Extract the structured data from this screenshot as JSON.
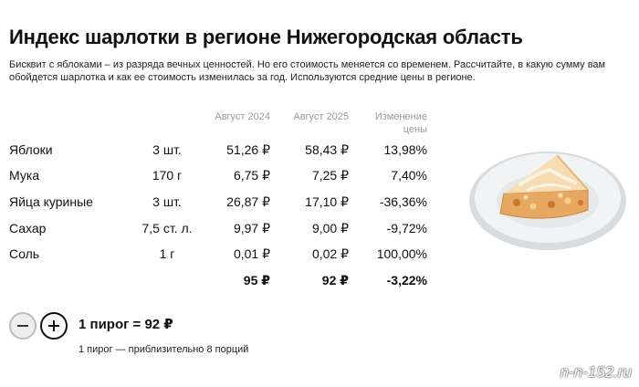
{
  "page": {
    "title": "Индекс шарлотки в регионе Нижегородская область",
    "description_line1": "Бисквит с яблоками – из разряда вечных ценностей. Но его стоимость меняется со временем. Рассчитайте, в какую сумму вам",
    "description_line2": "обойдется шарлотка и как ее стоимость изменилась за год. Используются средние цены в регионе."
  },
  "table": {
    "headers": {
      "aug2024": "Август 2024",
      "aug2025": "Август 2025",
      "change_line1": "Изменение",
      "change_line2": "цены"
    },
    "rows": [
      {
        "name": "Яблоки",
        "qty": "3 шт.",
        "price_2024": "51,26 ₽",
        "price_2025": "58,43 ₽",
        "change": "13,98%"
      },
      {
        "name": "Мука",
        "qty": "170 г",
        "price_2024": "6,75 ₽",
        "price_2025": "7,25 ₽",
        "change": "7,40%"
      },
      {
        "name": "Яйца куриные",
        "qty": "3 шт.",
        "price_2024": "26,87 ₽",
        "price_2025": "17,10 ₽",
        "change": "-36,36%"
      },
      {
        "name": "Сахар",
        "qty": "7,5 ст. л.",
        "price_2024": "9,97 ₽",
        "price_2025": "9,00 ₽",
        "change": "-9,72%"
      },
      {
        "name": "Соль",
        "qty": "1 г",
        "price_2024": "0,01 ₽",
        "price_2025": "0,02 ₽",
        "change": "100,00%"
      }
    ],
    "totals": {
      "price_2024": "95 ₽",
      "price_2025": "92 ₽",
      "change": "-3,22%"
    }
  },
  "calculator": {
    "count_label": "1 пирог = 92 ₽",
    "portion_note": "1 пирог — приблизительно 8 порций"
  },
  "icons": {
    "minus": "minus-icon",
    "plus": "plus-icon",
    "illustration": "charlotte-pie-slice"
  },
  "watermark": "n-n-152.ru",
  "colors": {
    "text": "#111111",
    "header_text": "#9a9a9a",
    "minus_button_bg": "#eeeeee"
  }
}
